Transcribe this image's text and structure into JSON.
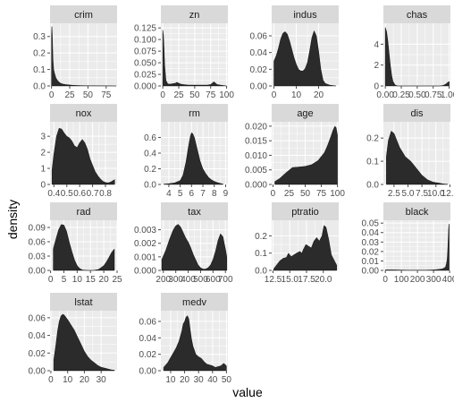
{
  "figure": {
    "xlabel": "value",
    "ylabel": "density",
    "strip_fill": "#d9d9d9",
    "panel_bg": "#ebebeb",
    "grid_color": "#ffffff",
    "density_fill": "#2b2b2b",
    "tick_color": "#4d4d4d"
  },
  "chart_data": [
    {
      "type": "area",
      "title": "crim",
      "xlim": [
        -2,
        90
      ],
      "ylim": [
        0,
        0.38
      ],
      "xticks": [
        0,
        25,
        50,
        75
      ],
      "xtick_labels": [
        "0",
        "25",
        "50",
        "75"
      ],
      "yticks": [
        0,
        0.1,
        0.2,
        0.3
      ],
      "ytick_labels": [
        "0.0",
        "0.1",
        "0.2",
        "0.3"
      ],
      "x": [
        0,
        0.5,
        1,
        1.5,
        2,
        3,
        4,
        5,
        6,
        8,
        10,
        12,
        15,
        20,
        25,
        30,
        40,
        50,
        60,
        70,
        80,
        89
      ],
      "y": [
        0.31,
        0.36,
        0.33,
        0.24,
        0.16,
        0.1,
        0.08,
        0.065,
        0.05,
        0.035,
        0.025,
        0.018,
        0.012,
        0.008,
        0.006,
        0.004,
        0.002,
        0.001,
        0.001,
        0.0005,
        0.0003,
        0
      ]
    },
    {
      "type": "area",
      "title": "zn",
      "xlim": [
        -3,
        102
      ],
      "ylim": [
        0,
        0.135
      ],
      "xticks": [
        0,
        25,
        50,
        75,
        100
      ],
      "xtick_labels": [
        "0",
        "25",
        "50",
        "75",
        "100"
      ],
      "yticks": [
        0,
        0.025,
        0.05,
        0.075,
        0.1,
        0.125
      ],
      "ytick_labels": [
        "0.000",
        "0.025",
        "0.050",
        "0.075",
        "0.100",
        "0.125"
      ],
      "x": [
        0,
        1,
        2,
        3,
        5,
        8,
        12,
        16,
        20,
        22,
        25,
        28,
        32,
        40,
        50,
        60,
        70,
        75,
        80,
        85,
        90,
        95,
        100
      ],
      "y": [
        0.12,
        0.11,
        0.08,
        0.045,
        0.012,
        0.004,
        0.004,
        0.005,
        0.006,
        0.008,
        0.006,
        0.004,
        0.003,
        0.002,
        0.002,
        0.002,
        0.002,
        0.003,
        0.009,
        0.003,
        0.002,
        0.001,
        0
      ]
    },
    {
      "type": "area",
      "title": "indus",
      "xlim": [
        -1,
        29
      ],
      "ylim": [
        0,
        0.075
      ],
      "xticks": [
        0,
        10,
        20
      ],
      "xtick_labels": [
        "0",
        "10",
        "20"
      ],
      "yticks": [
        0,
        0.02,
        0.04,
        0.06
      ],
      "ytick_labels": [
        "0.00",
        "0.02",
        "0.04",
        "0.06"
      ],
      "x": [
        0,
        1,
        2,
        3,
        4,
        5,
        6,
        7,
        8,
        9,
        10,
        11,
        12,
        13,
        14,
        15,
        16,
        17,
        18,
        19,
        20,
        21,
        22,
        23,
        25,
        27.7
      ],
      "y": [
        0.03,
        0.036,
        0.045,
        0.056,
        0.063,
        0.065,
        0.062,
        0.054,
        0.044,
        0.034,
        0.026,
        0.02,
        0.018,
        0.018,
        0.021,
        0.028,
        0.042,
        0.058,
        0.066,
        0.06,
        0.042,
        0.02,
        0.007,
        0.003,
        0.001,
        0
      ]
    },
    {
      "type": "area",
      "title": "chas",
      "xlim": [
        -0.03,
        1.02
      ],
      "ylim": [
        0,
        6
      ],
      "xticks": [
        0,
        0.25,
        0.5,
        0.75,
        1.0
      ],
      "xtick_labels": [
        "0.00",
        "0.25",
        "0.50",
        "0.75",
        "1.00"
      ],
      "yticks": [
        0,
        2,
        4
      ],
      "ytick_labels": [
        "0",
        "2",
        "4"
      ],
      "x": [
        0,
        0.02,
        0.04,
        0.06,
        0.08,
        0.1,
        0.12,
        0.15,
        0.18,
        0.2,
        0.3,
        0.5,
        0.7,
        0.85,
        0.9,
        0.93,
        0.95,
        0.97,
        0.99,
        1.0
      ],
      "y": [
        5.6,
        5.2,
        4.3,
        3.1,
        1.9,
        1.0,
        0.45,
        0.12,
        0.02,
        0,
        0,
        0,
        0,
        0,
        0.04,
        0.12,
        0.2,
        0.3,
        0.4,
        0.42
      ]
    },
    {
      "type": "area",
      "title": "nox",
      "xlim": [
        0.37,
        0.89
      ],
      "ylim": [
        0,
        3.9
      ],
      "xticks": [
        0.4,
        0.5,
        0.6,
        0.7,
        0.8
      ],
      "xtick_labels": [
        "0.4",
        "0.5",
        "0.6",
        "0.7",
        "0.8"
      ],
      "yticks": [
        0,
        1,
        2,
        3
      ],
      "ytick_labels": [
        "0",
        "1",
        "2",
        "3"
      ],
      "x": [
        0.385,
        0.4,
        0.42,
        0.44,
        0.46,
        0.48,
        0.5,
        0.52,
        0.54,
        0.56,
        0.58,
        0.6,
        0.62,
        0.64,
        0.66,
        0.68,
        0.7,
        0.72,
        0.74,
        0.76,
        0.78,
        0.8,
        0.82,
        0.84,
        0.86,
        0.871
      ],
      "y": [
        0.9,
        1.9,
        3.0,
        3.5,
        3.45,
        3.2,
        3.0,
        2.9,
        2.7,
        2.4,
        2.3,
        2.6,
        2.8,
        2.6,
        2.2,
        1.6,
        1.2,
        0.8,
        0.55,
        0.35,
        0.2,
        0.12,
        0.1,
        0.15,
        0.25,
        0.3
      ]
    },
    {
      "type": "area",
      "title": "rm",
      "xlim": [
        3.3,
        9.2
      ],
      "ylim": [
        0,
        0.8
      ],
      "xticks": [
        4,
        5,
        6,
        7,
        8,
        9
      ],
      "xtick_labels": [
        "4",
        "5",
        "6",
        "7",
        "8",
        "9"
      ],
      "yticks": [
        0,
        0.2,
        0.4,
        0.6
      ],
      "ytick_labels": [
        "0.0",
        "0.2",
        "0.4",
        "0.6"
      ],
      "x": [
        3.56,
        4,
        4.5,
        5,
        5.25,
        5.5,
        5.75,
        5.9,
        6.0,
        6.1,
        6.25,
        6.5,
        6.75,
        7,
        7.25,
        7.5,
        7.75,
        8,
        8.25,
        8.5,
        8.78
      ],
      "y": [
        0.005,
        0.01,
        0.02,
        0.05,
        0.12,
        0.28,
        0.5,
        0.62,
        0.66,
        0.65,
        0.6,
        0.45,
        0.3,
        0.2,
        0.14,
        0.09,
        0.06,
        0.04,
        0.025,
        0.015,
        0.005
      ]
    },
    {
      "type": "area",
      "title": "age",
      "xlim": [
        -2,
        102
      ],
      "ylim": [
        0,
        0.0215
      ],
      "xticks": [
        0,
        25,
        50,
        75,
        100
      ],
      "xtick_labels": [
        "0",
        "25",
        "50",
        "75",
        "100"
      ],
      "yticks": [
        0,
        0.005,
        0.01,
        0.015,
        0.02
      ],
      "ytick_labels": [
        "0.000",
        "0.005",
        "0.010",
        "0.015",
        "0.020"
      ],
      "x": [
        2.9,
        10,
        20,
        30,
        40,
        50,
        60,
        70,
        80,
        85,
        90,
        93,
        96,
        98,
        100
      ],
      "y": [
        0.001,
        0.002,
        0.004,
        0.0058,
        0.006,
        0.0062,
        0.0068,
        0.0082,
        0.011,
        0.0135,
        0.0165,
        0.0185,
        0.02,
        0.0195,
        0.017
      ]
    },
    {
      "type": "area",
      "title": "dis",
      "xlim": [
        0.6,
        12.6
      ],
      "ylim": [
        0,
        0.27
      ],
      "xticks": [
        2.5,
        5.0,
        7.5,
        10.0,
        12.5
      ],
      "xtick_labels": [
        "2.5",
        "5.0",
        "7.5",
        "10.0",
        "12.5"
      ],
      "yticks": [
        0,
        0.1,
        0.2
      ],
      "ytick_labels": [
        "0.0",
        "0.1",
        "0.2"
      ],
      "x": [
        1.13,
        1.5,
        2,
        2.5,
        3,
        3.5,
        4,
        4.5,
        5,
        5.5,
        6,
        6.5,
        7,
        7.5,
        8,
        8.5,
        9,
        9.5,
        10,
        10.5,
        11,
        11.5,
        12.1
      ],
      "y": [
        0.12,
        0.19,
        0.23,
        0.22,
        0.19,
        0.16,
        0.14,
        0.12,
        0.11,
        0.1,
        0.085,
        0.07,
        0.055,
        0.04,
        0.03,
        0.02,
        0.015,
        0.01,
        0.008,
        0.006,
        0.004,
        0.002,
        0.001
      ]
    },
    {
      "type": "area",
      "title": "rad",
      "xlim": [
        -0.2,
        25
      ],
      "ylim": [
        0,
        0.105
      ],
      "xticks": [
        0,
        5,
        10,
        15,
        20,
        25
      ],
      "xtick_labels": [
        "0",
        "5",
        "10",
        "15",
        "20",
        "25"
      ],
      "yticks": [
        0,
        0.03,
        0.06,
        0.09
      ],
      "ytick_labels": [
        "0.00",
        "0.03",
        "0.06",
        "0.09"
      ],
      "x": [
        1,
        2,
        3,
        4,
        5,
        6,
        7,
        8,
        9,
        10,
        11,
        12,
        14,
        16,
        18,
        20,
        21,
        22,
        23,
        24
      ],
      "y": [
        0.045,
        0.065,
        0.085,
        0.096,
        0.095,
        0.082,
        0.06,
        0.04,
        0.022,
        0.01,
        0.004,
        0.001,
        0,
        0,
        0.002,
        0.01,
        0.018,
        0.028,
        0.038,
        0.045
      ]
    },
    {
      "type": "area",
      "title": "tax",
      "xlim": [
        180,
        720
      ],
      "ylim": [
        0,
        0.0037
      ],
      "xticks": [
        200,
        300,
        400,
        500,
        600,
        700
      ],
      "xtick_labels": [
        "200",
        "300",
        "400",
        "500",
        "600",
        "700"
      ],
      "yticks": [
        0,
        0.001,
        0.002,
        0.003
      ],
      "ytick_labels": [
        "0.000",
        "0.001",
        "0.002",
        "0.003"
      ],
      "x": [
        187,
        220,
        250,
        280,
        300,
        320,
        340,
        360,
        380,
        400,
        420,
        440,
        460,
        480,
        500,
        520,
        540,
        560,
        580,
        600,
        620,
        640,
        660,
        680,
        700,
        711
      ],
      "y": [
        0.0008,
        0.0015,
        0.0023,
        0.003,
        0.0033,
        0.0034,
        0.0032,
        0.0028,
        0.0024,
        0.0021,
        0.0017,
        0.0012,
        0.0008,
        0.0004,
        0.0002,
        0.0001,
        0.0001,
        0.0002,
        0.0004,
        0.0008,
        0.0014,
        0.0022,
        0.0027,
        0.0025,
        0.0016,
        0.001
      ]
    },
    {
      "type": "area",
      "title": "ptratio",
      "xlim": [
        12.3,
        22.3
      ],
      "ylim": [
        0,
        0.29
      ],
      "xticks": [
        12.5,
        15.0,
        17.5,
        20.0
      ],
      "xtick_labels": [
        "12.5",
        "15.0",
        "17.5",
        "20.0"
      ],
      "yticks": [
        0,
        0.1,
        0.2
      ],
      "ytick_labels": [
        "0.0",
        "0.1",
        "0.2"
      ],
      "x": [
        12.6,
        13,
        13.5,
        14,
        14.5,
        14.8,
        15.2,
        15.6,
        16,
        16.5,
        16.8,
        17,
        17.4,
        17.8,
        18.2,
        18.6,
        19,
        19.4,
        19.8,
        20.1,
        20.4,
        20.8,
        21.2,
        22
      ],
      "y": [
        0.01,
        0.03,
        0.055,
        0.07,
        0.075,
        0.1,
        0.08,
        0.09,
        0.1,
        0.11,
        0.1,
        0.12,
        0.15,
        0.14,
        0.13,
        0.17,
        0.19,
        0.17,
        0.2,
        0.26,
        0.25,
        0.18,
        0.09,
        0.03
      ]
    },
    {
      "type": "area",
      "title": "black",
      "xlim": [
        -12,
        405
      ],
      "ylim": [
        0,
        0.053
      ],
      "xticks": [
        0,
        100,
        200,
        300,
        400
      ],
      "xtick_labels": [
        "0",
        "100",
        "200",
        "300",
        "400"
      ],
      "yticks": [
        0,
        0.01,
        0.02,
        0.03,
        0.04,
        0.05
      ],
      "ytick_labels": [
        "0.00",
        "0.01",
        "0.02",
        "0.03",
        "0.04",
        "0.05"
      ],
      "x": [
        0.3,
        50,
        100,
        150,
        200,
        250,
        300,
        330,
        350,
        360,
        370,
        375,
        380,
        385,
        388,
        391,
        394,
        397
      ],
      "y": [
        0.0006,
        0.0006,
        0.0004,
        0.0002,
        0.0002,
        0.0003,
        0.0006,
        0.001,
        0.0015,
        0.002,
        0.003,
        0.004,
        0.007,
        0.012,
        0.02,
        0.033,
        0.045,
        0.049
      ]
    },
    {
      "type": "area",
      "title": "lstat",
      "xlim": [
        -0.5,
        39.5
      ],
      "ylim": [
        0,
        0.068
      ],
      "xticks": [
        0,
        10,
        20,
        30
      ],
      "xtick_labels": [
        "0",
        "10",
        "20",
        "30"
      ],
      "yticks": [
        0,
        0.02,
        0.04,
        0.06
      ],
      "ytick_labels": [
        "0.00",
        "0.02",
        "0.04",
        "0.06"
      ],
      "x": [
        1.7,
        3,
        4,
        5,
        6,
        7,
        8,
        10,
        12,
        14,
        16,
        18,
        20,
        22,
        24,
        26,
        28,
        30,
        32,
        34,
        36,
        38
      ],
      "y": [
        0.012,
        0.03,
        0.045,
        0.056,
        0.062,
        0.064,
        0.063,
        0.058,
        0.052,
        0.046,
        0.038,
        0.03,
        0.022,
        0.016,
        0.012,
        0.009,
        0.006,
        0.004,
        0.003,
        0.002,
        0.001,
        0.0005
      ]
    },
    {
      "type": "area",
      "title": "medv",
      "xlim": [
        3,
        51
      ],
      "ylim": [
        0,
        0.073
      ],
      "xticks": [
        10,
        20,
        30,
        40,
        50
      ],
      "xtick_labels": [
        "10",
        "20",
        "30",
        "40",
        "50"
      ],
      "yticks": [
        0,
        0.02,
        0.04,
        0.06
      ],
      "ytick_labels": [
        "0.00",
        "0.02",
        "0.04",
        "0.06"
      ],
      "x": [
        5,
        8,
        10,
        12,
        14,
        16,
        18,
        19,
        20,
        21,
        22,
        23,
        24,
        25,
        26,
        28,
        30,
        32,
        34,
        36,
        38,
        40,
        42,
        44,
        46,
        48,
        50
      ],
      "y": [
        0.004,
        0.01,
        0.016,
        0.022,
        0.028,
        0.036,
        0.048,
        0.057,
        0.06,
        0.065,
        0.067,
        0.063,
        0.05,
        0.038,
        0.03,
        0.02,
        0.017,
        0.015,
        0.011,
        0.008,
        0.007,
        0.006,
        0.004,
        0.005,
        0.006,
        0.009,
        0.006
      ]
    }
  ]
}
